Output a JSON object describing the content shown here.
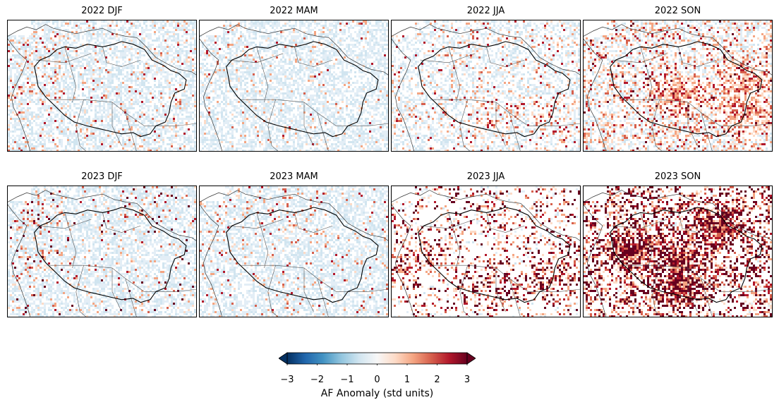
{
  "figure": {
    "panels": [
      {
        "title": "2022 DJF",
        "id": "p1",
        "pattern": {
          "blue": 0.55,
          "lightred": 0.06,
          "red": 0.02,
          "dark": 0.0,
          "hotspots": [
            "northwest",
            "andes"
          ]
        }
      },
      {
        "title": "2022 MAM",
        "id": "p2",
        "pattern": {
          "blue": 0.55,
          "lightred": 0.04,
          "red": 0.01,
          "dark": 0.0,
          "hotspots": [
            "northwest"
          ]
        }
      },
      {
        "title": "2022 JJA",
        "id": "p3",
        "pattern": {
          "blue": 0.35,
          "lightred": 0.08,
          "red": 0.03,
          "dark": 0.0,
          "hotspots": [
            "south",
            "southeast"
          ]
        }
      },
      {
        "title": "2022 SON",
        "id": "p4",
        "pattern": {
          "blue": 0.25,
          "lightred": 0.18,
          "red": 0.08,
          "dark": 0.01,
          "hotspots": [
            "east",
            "southeast",
            "center"
          ]
        }
      },
      {
        "title": "2023 DJF",
        "id": "p5",
        "pattern": {
          "blue": 0.55,
          "lightred": 0.05,
          "red": 0.02,
          "dark": 0.01,
          "hotspots": [
            "northwest",
            "andes"
          ]
        }
      },
      {
        "title": "2023 MAM",
        "id": "p6",
        "pattern": {
          "blue": 0.55,
          "lightred": 0.04,
          "red": 0.02,
          "dark": 0.0,
          "hotspots": [
            "north"
          ]
        }
      },
      {
        "title": "2023 JJA",
        "id": "p7",
        "pattern": {
          "blue": 0.05,
          "lightred": 0.08,
          "red": 0.05,
          "dark": 0.05,
          "hotspots": [
            "andes",
            "south",
            "southeast"
          ]
        }
      },
      {
        "title": "2023 SON",
        "id": "p8",
        "pattern": {
          "blue": 0.02,
          "lightred": 0.12,
          "red": 0.1,
          "dark": 0.14,
          "hotspots": [
            "center",
            "south",
            "northeast",
            "west"
          ]
        }
      }
    ]
  },
  "colorbar": {
    "label": "AF Anomaly (std units)",
    "ticks": [
      "−3",
      "−2",
      "−1",
      "0",
      "1",
      "2",
      "3"
    ],
    "range": [
      -3,
      3
    ],
    "colormap": "RdBu_r",
    "colors": [
      "#053061",
      "#2166ac",
      "#4393c3",
      "#92c5de",
      "#d1e5f0",
      "#f7f7f7",
      "#fddbc7",
      "#f4a582",
      "#d6604d",
      "#b2182b",
      "#67001f"
    ]
  }
}
